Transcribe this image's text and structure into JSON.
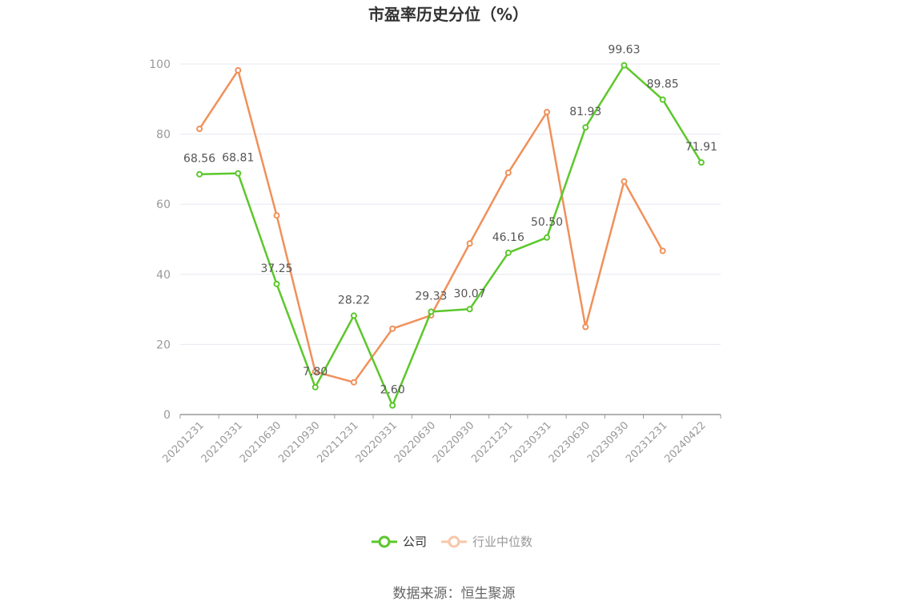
{
  "chart_data": {
    "type": "line",
    "title": "市盈率历史分位（%）",
    "x": [
      "20201231",
      "20210331",
      "20210630",
      "20210930",
      "20211231",
      "20220331",
      "20220630",
      "20220930",
      "20221231",
      "20230331",
      "20230630",
      "20230930",
      "20231231",
      "20240422"
    ],
    "ylim": [
      0,
      100
    ],
    "yticks": [
      0,
      20,
      40,
      60,
      80,
      100
    ],
    "grid": true,
    "legend_position": "bottom-center",
    "series": [
      {
        "name": "公司",
        "color": "#5cc72c",
        "values": [
          68.56,
          68.81,
          37.25,
          7.8,
          28.22,
          2.6,
          29.33,
          30.07,
          46.16,
          50.5,
          81.93,
          99.63,
          89.85,
          71.91
        ],
        "labels": [
          "68.56",
          "68.81",
          "37.25",
          "7.80",
          "28.22",
          "2.60",
          "29.33",
          "30.07",
          "46.16",
          "50.50",
          "81.93",
          "99.63",
          "89.85",
          "71.91"
        ]
      },
      {
        "name": "行业中位数",
        "color": "#f0905a",
        "values": [
          81.5,
          98.2,
          56.8,
          12.2,
          9.2,
          24.5,
          28.3,
          48.8,
          69.0,
          86.3,
          25.0,
          66.5,
          46.7,
          null
        ]
      }
    ]
  },
  "legend": {
    "company_label": "公司",
    "industry_label": "行业中位数"
  },
  "source_text": "数据来源：恒生聚源"
}
